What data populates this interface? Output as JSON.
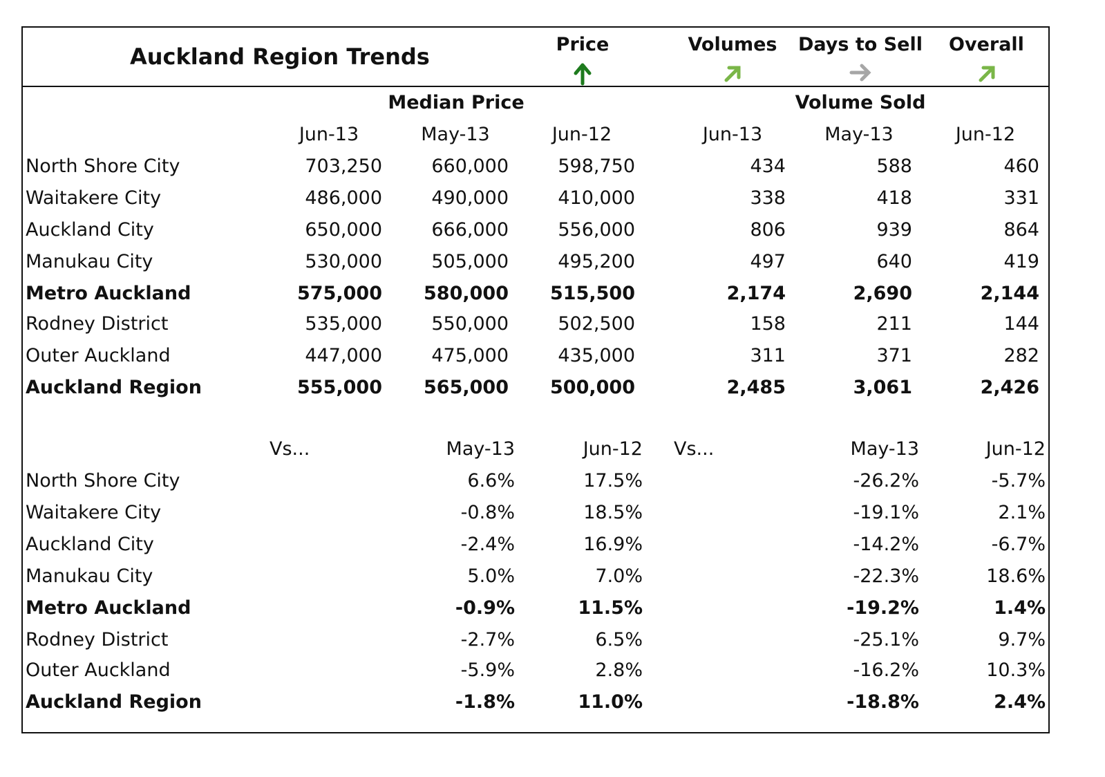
{
  "title": "Auckland Region Trends",
  "indicators": [
    {
      "label": "Price",
      "direction": "up",
      "color": "#1e7b1e",
      "icon": "arrow-up-icon"
    },
    {
      "label": "Volumes",
      "direction": "up-right",
      "color": "#7ab648",
      "icon": "arrow-up-right-icon"
    },
    {
      "label": "Days to Sell",
      "direction": "right",
      "color": "#a6a6a6",
      "icon": "arrow-right-icon"
    },
    {
      "label": "Overall",
      "direction": "up-right",
      "color": "#7ab648",
      "icon": "arrow-up-right-icon"
    }
  ],
  "top_table": {
    "group_headers": [
      "Median Price",
      "Volume Sold"
    ],
    "columns": [
      "Jun-13",
      "May-13",
      "Jun-12",
      "Jun-13",
      "May-13",
      "Jun-12"
    ],
    "rows": [
      {
        "name": "North Shore City",
        "bold": false,
        "values": [
          "703,250",
          "660,000",
          "598,750",
          "434",
          "588",
          "460"
        ]
      },
      {
        "name": "Waitakere City",
        "bold": false,
        "values": [
          "486,000",
          "490,000",
          "410,000",
          "338",
          "418",
          "331"
        ]
      },
      {
        "name": "Auckland City",
        "bold": false,
        "values": [
          "650,000",
          "666,000",
          "556,000",
          "806",
          "939",
          "864"
        ]
      },
      {
        "name": "Manukau City",
        "bold": false,
        "values": [
          "530,000",
          "505,000",
          "495,200",
          "497",
          "640",
          "419"
        ]
      },
      {
        "name": "Metro Auckland",
        "bold": true,
        "values": [
          "575,000",
          "580,000",
          "515,500",
          "2,174",
          "2,690",
          "2,144"
        ]
      },
      {
        "name": "Rodney District",
        "bold": false,
        "values": [
          "535,000",
          "550,000",
          "502,500",
          "158",
          "211",
          "144"
        ]
      },
      {
        "name": "Outer Auckland",
        "bold": false,
        "values": [
          "447,000",
          "475,000",
          "435,000",
          "311",
          "371",
          "282"
        ]
      },
      {
        "name": "Auckland Region",
        "bold": true,
        "values": [
          "555,000",
          "565,000",
          "500,000",
          "2,485",
          "3,061",
          "2,426"
        ]
      }
    ]
  },
  "bottom_table": {
    "vs_label": "Vs...",
    "columns": [
      "May-13",
      "Jun-12",
      "May-13",
      "Jun-12"
    ],
    "rows": [
      {
        "name": "North Shore City",
        "bold": false,
        "values": [
          "6.6%",
          "17.5%",
          "-26.2%",
          "-5.7%"
        ]
      },
      {
        "name": "Waitakere City",
        "bold": false,
        "values": [
          "-0.8%",
          "18.5%",
          "-19.1%",
          "2.1%"
        ]
      },
      {
        "name": "Auckland City",
        "bold": false,
        "values": [
          "-2.4%",
          "16.9%",
          "-14.2%",
          "-6.7%"
        ]
      },
      {
        "name": "Manukau City",
        "bold": false,
        "values": [
          "5.0%",
          "7.0%",
          "-22.3%",
          "18.6%"
        ]
      },
      {
        "name": "Metro Auckland",
        "bold": true,
        "values": [
          "-0.9%",
          "11.5%",
          "-19.2%",
          "1.4%"
        ]
      },
      {
        "name": "Rodney District",
        "bold": false,
        "values": [
          "-2.7%",
          "6.5%",
          "-25.1%",
          "9.7%"
        ]
      },
      {
        "name": "Outer Auckland",
        "bold": false,
        "values": [
          "-5.9%",
          "2.8%",
          "-16.2%",
          "10.3%"
        ]
      },
      {
        "name": "Auckland Region",
        "bold": true,
        "values": [
          "-1.8%",
          "11.0%",
          "-18.8%",
          "2.4%"
        ]
      }
    ]
  }
}
